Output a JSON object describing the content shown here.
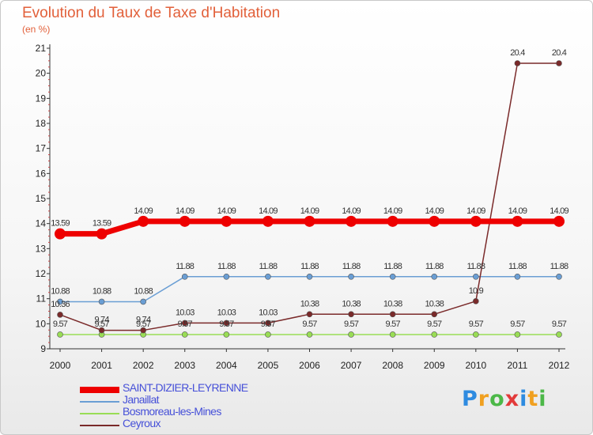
{
  "chart_data": {
    "type": "line",
    "title": "Evolution du Taux de Taxe d'Habitation",
    "unit_label": "(en %)",
    "x": [
      "2000",
      "2001",
      "2002",
      "2003",
      "2004",
      "2005",
      "2006",
      "2007",
      "2008",
      "2009",
      "2010",
      "2011",
      "2012"
    ],
    "ylim": [
      9,
      21
    ],
    "yticks": [
      9,
      10,
      11,
      12,
      13,
      14,
      15,
      16,
      17,
      18,
      19,
      20,
      21
    ],
    "grid": false,
    "legend_position": "bottom-left",
    "series": [
      {
        "name": "SAINT-DIZIER-LEYRENNE",
        "color": "#ee0000",
        "values": [
          13.59,
          13.59,
          14.09,
          14.09,
          14.09,
          14.09,
          14.09,
          14.09,
          14.09,
          14.09,
          14.09,
          14.09,
          14.09
        ],
        "labels": [
          "13.59",
          "13.59",
          "14.09",
          "14.09",
          "14.09",
          "14.09",
          "14.09",
          "14.09",
          "14.09",
          "14.09",
          "14.09",
          "14.09",
          "14.09"
        ]
      },
      {
        "name": "Janaillat",
        "color": "#6a9ed4",
        "values": [
          10.88,
          10.88,
          10.88,
          11.88,
          11.88,
          11.88,
          11.88,
          11.88,
          11.88,
          11.88,
          11.88,
          11.88,
          11.88
        ],
        "labels": [
          "10.88",
          "10.88",
          "10.88",
          "11.88",
          "11.88",
          "11.88",
          "11.88",
          "11.88",
          "11.88",
          "11.88",
          "11.88",
          "11.88",
          "11.88"
        ]
      },
      {
        "name": "Bosmoreau-les-Mines",
        "color": "#99dd55",
        "values": [
          9.57,
          9.57,
          9.57,
          9.57,
          9.57,
          9.57,
          9.57,
          9.57,
          9.57,
          9.57,
          9.57,
          9.57,
          9.57
        ],
        "labels": [
          "9.57",
          "9.57",
          "9.57",
          "9.57",
          "9.57",
          "9.57",
          "9.57",
          "9.57",
          "9.57",
          "9.57",
          "9.57",
          "9.57",
          "9.57"
        ]
      },
      {
        "name": "Ceyroux",
        "color": "#7a2a2a",
        "values": [
          10.36,
          9.74,
          9.74,
          10.03,
          10.03,
          10.03,
          10.38,
          10.38,
          10.38,
          10.38,
          10.9,
          20.4,
          20.4
        ],
        "labels": [
          "10.36",
          "9.74",
          "9.74",
          "10.03",
          "10.03",
          "10.03",
          "10.38",
          "10.38",
          "10.38",
          "10.38",
          "10.9",
          "20.4",
          "20.4"
        ]
      }
    ]
  },
  "logo": {
    "text": "Proxiti",
    "letters": [
      "P",
      "r",
      "o",
      "x",
      "i",
      "t",
      "i"
    ],
    "colors": [
      "#2e8be0",
      "#f0a020",
      "#4cb848",
      "#e23a3a",
      "#2e8be0",
      "#f0a020",
      "#4cb848"
    ]
  }
}
